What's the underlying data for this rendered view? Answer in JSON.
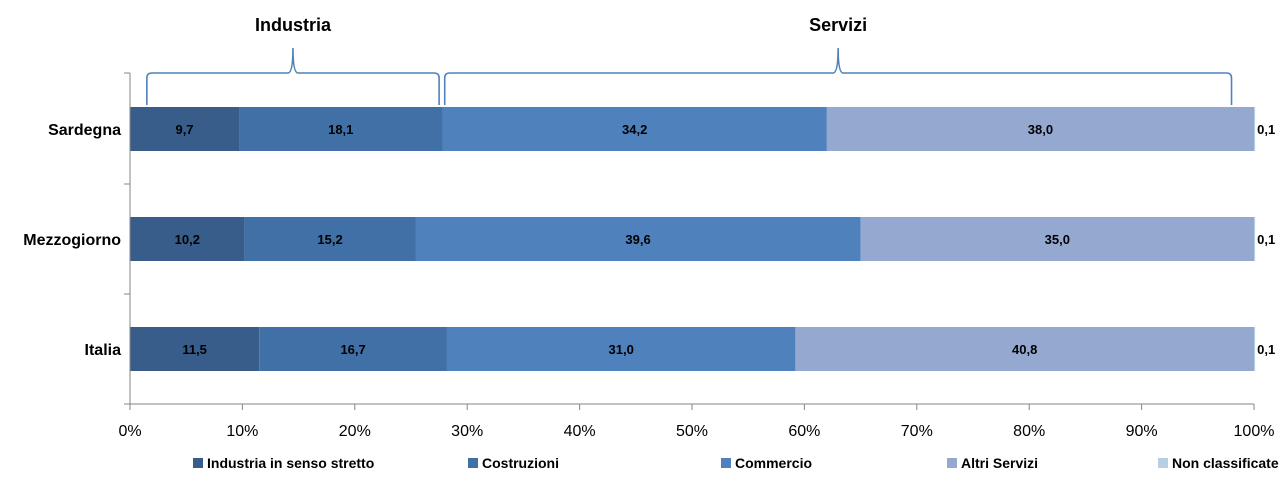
{
  "chart_data": {
    "type": "bar",
    "orientation": "horizontal",
    "stacked": "percent",
    "categories": [
      "Sardegna",
      "Mezzogiorno",
      "Italia"
    ],
    "series": [
      {
        "name": "Industria in senso stretto",
        "values": [
          9.7,
          10.2,
          11.5
        ],
        "labels": [
          "9,7",
          "10,2",
          "11,5"
        ],
        "color": "#385D8A"
      },
      {
        "name": "Costruzioni",
        "values": [
          18.1,
          15.2,
          16.7
        ],
        "labels": [
          "18,1",
          "15,2",
          "16,7"
        ],
        "color": "#4170A6"
      },
      {
        "name": "Commercio",
        "values": [
          34.2,
          39.6,
          31.0
        ],
        "labels": [
          "34,2",
          "39,6",
          "31,0"
        ],
        "color": "#4F81BD"
      },
      {
        "name": "Altri Servizi",
        "values": [
          38.0,
          35.0,
          40.8
        ],
        "labels": [
          "38,0",
          "35,0",
          "40,8"
        ],
        "color": "#95A9D0"
      },
      {
        "name": "Non classificate",
        "values": [
          0.1,
          0.1,
          0.1
        ],
        "labels": [
          "0,1",
          "0,1",
          "0,1"
        ],
        "color": "#B9CDE5"
      }
    ],
    "x_ticks": [
      "0%",
      "10%",
      "20%",
      "30%",
      "40%",
      "50%",
      "60%",
      "70%",
      "80%",
      "90%",
      "100%"
    ],
    "xlim": [
      0,
      100
    ],
    "grid": false,
    "legend_position": "bottom",
    "groups": [
      {
        "label": "Industria",
        "from": 1.5,
        "to": 27.5
      },
      {
        "label": "Servizi",
        "from": 28.0,
        "to": 98.0
      }
    ],
    "bracket_color": "#4F81BD"
  }
}
